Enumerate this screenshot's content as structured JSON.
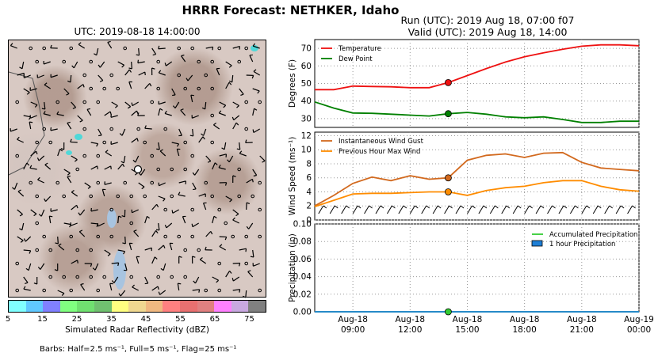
{
  "title": "HRRR Forecast: NETHKER, Idaho",
  "run_text": "Run (UTC): 2019 Aug 18, 07:00 f07",
  "valid_text": "Valid (UTC): 2019 Aug 18, 14:00",
  "map": {
    "title": "UTC: 2019-08-18 14:00:00",
    "colorbar_label": "Simulated Radar Reflectivity (dBZ)",
    "colorbar_ticks": [
      "5",
      "15",
      "25",
      "35",
      "45",
      "55",
      "65",
      "75"
    ],
    "colorbar_colors": [
      "#80ffff",
      "#60c8ff",
      "#8080ff",
      "#80ff80",
      "#70e070",
      "#70c070",
      "#ffff80",
      "#f0d890",
      "#f0b880",
      "#ff8080",
      "#e87070",
      "#e08080",
      "#ff80ff",
      "#c8a8e0",
      "#808080"
    ],
    "barb_note": "Barbs: Half=2.5 ms⁻¹, Full=5 ms⁻¹, Flag=25 ms⁻¹"
  },
  "chart_data": [
    {
      "type": "line",
      "ylabel": "Degrees (F)",
      "ylim": [
        25,
        75
      ],
      "yticks": [
        "30",
        "40",
        "50",
        "60",
        "70"
      ],
      "x": [
        7,
        8,
        9,
        10,
        11,
        12,
        13,
        14,
        15,
        16,
        17,
        18,
        19,
        20,
        21,
        22,
        23,
        24
      ],
      "series": [
        {
          "name": "Temperature",
          "color": "#ee1111",
          "values": [
            46.5,
            46.5,
            48.5,
            48.3,
            48.1,
            47.6,
            47.6,
            50.5,
            54.5,
            58.5,
            62.2,
            65.2,
            67.5,
            69.5,
            71.2,
            72.0,
            72.0,
            71.5
          ]
        },
        {
          "name": "Dew Point",
          "color": "#008000",
          "values": [
            39.5,
            36,
            33.2,
            33,
            32.5,
            32,
            31.5,
            32.8,
            33.5,
            32.5,
            31,
            30.5,
            31,
            29.5,
            27.8,
            27.8,
            28.5,
            28.5
          ]
        }
      ],
      "marker_x": 14,
      "grid": true,
      "legend": "top-left"
    },
    {
      "type": "line",
      "ylabel": "Wind Speed (ms⁻¹)",
      "ylim": [
        0,
        12.5
      ],
      "yticks": [
        "0",
        "2",
        "4",
        "6",
        "8",
        "10",
        "12"
      ],
      "x": [
        7,
        8,
        9,
        10,
        11,
        12,
        13,
        14,
        15,
        16,
        17,
        18,
        19,
        20,
        21,
        22,
        23,
        24
      ],
      "series": [
        {
          "name": "Instantaneous Wind Gust",
          "color": "#d2691e",
          "values": [
            2.0,
            3.5,
            5.2,
            6.1,
            5.6,
            6.3,
            5.8,
            6.0,
            8.5,
            9.2,
            9.4,
            8.9,
            9.5,
            9.6,
            8.2,
            7.4,
            7.2,
            7.0
          ]
        },
        {
          "name": "Previous Hour Max Wind",
          "color": "#ff8c00",
          "values": [
            1.9,
            2.8,
            3.7,
            3.8,
            3.8,
            3.9,
            4.0,
            4.0,
            3.5,
            4.2,
            4.6,
            4.8,
            5.3,
            5.6,
            5.6,
            4.8,
            4.3,
            4.1
          ]
        }
      ],
      "marker_x": 14,
      "grid": true,
      "legend": "top-left"
    },
    {
      "type": "line",
      "ylabel": "Precipitation (in)",
      "ylim": [
        0,
        0.1
      ],
      "yticks": [
        "0.00",
        "0.02",
        "0.04",
        "0.06",
        "0.08",
        "0.10"
      ],
      "x": [
        7,
        8,
        9,
        10,
        11,
        12,
        13,
        14,
        15,
        16,
        17,
        18,
        19,
        20,
        21,
        22,
        23,
        24
      ],
      "series": [
        {
          "name": "Accumulated Precipitation",
          "color": "#33cc33",
          "values": [
            0,
            0,
            0,
            0,
            0,
            0,
            0,
            0,
            0,
            0,
            0,
            0,
            0,
            0,
            0,
            0,
            0,
            0
          ]
        },
        {
          "name": "1 hour Precipitation",
          "color": "#1e7fd6",
          "values": [
            0,
            0,
            0,
            0,
            0,
            0,
            0,
            0,
            0,
            0,
            0,
            0,
            0,
            0,
            0,
            0,
            0,
            0
          ]
        }
      ],
      "marker_x": 14,
      "grid": true,
      "legend": "top-right",
      "xticks": [
        {
          "x": 9,
          "line1": "Aug-18",
          "line2": "09:00"
        },
        {
          "x": 12,
          "line1": "Aug-18",
          "line2": "12:00"
        },
        {
          "x": 15,
          "line1": "Aug-18",
          "line2": "15:00"
        },
        {
          "x": 18,
          "line1": "Aug-18",
          "line2": "18:00"
        },
        {
          "x": 21,
          "line1": "Aug-18",
          "line2": "21:00"
        },
        {
          "x": 24,
          "line1": "Aug-19",
          "line2": "00:00"
        }
      ]
    }
  ]
}
